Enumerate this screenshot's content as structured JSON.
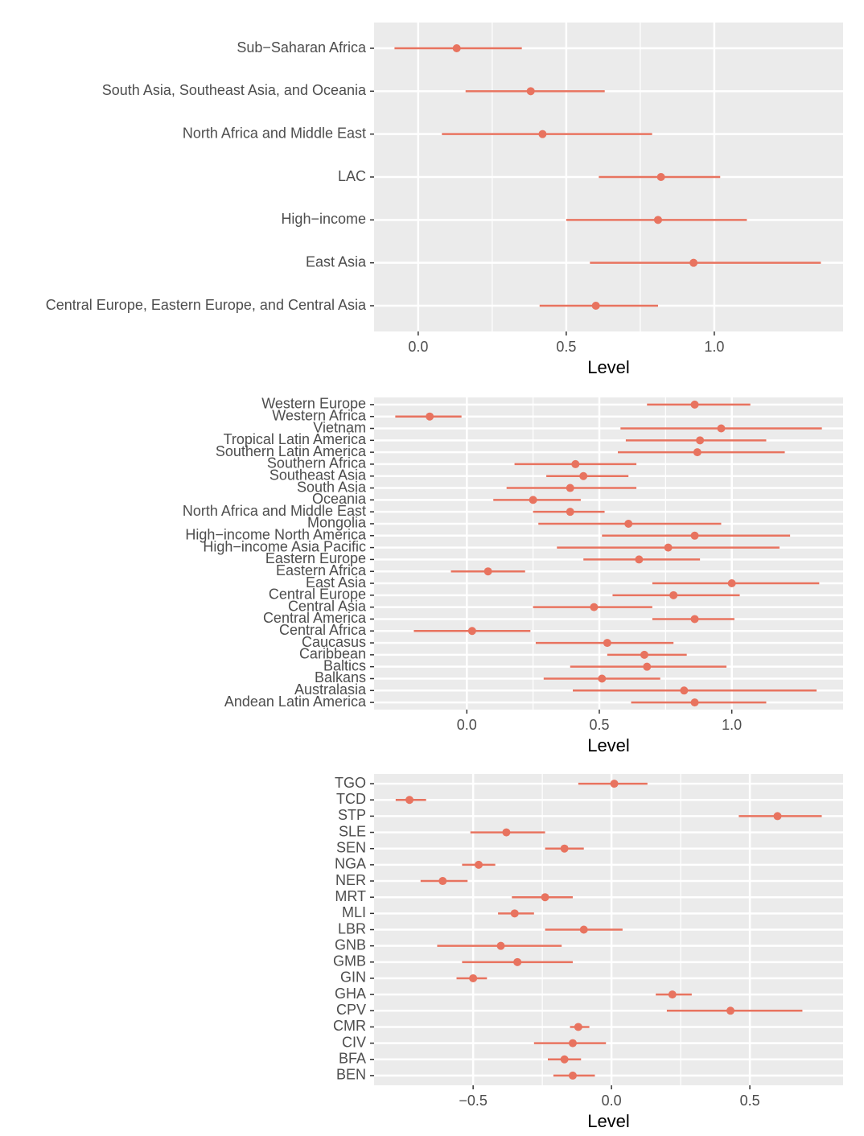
{
  "chart_data": [
    {
      "type": "pointrange",
      "xlabel": "Level",
      "color": "#e8735f",
      "grid": true,
      "categories": [
        "Sub−Saharan Africa",
        "South Asia, Southeast Asia, and Oceania",
        "North Africa and Middle East",
        "LAC",
        "High−income",
        "East Asia",
        "Central Europe, Eastern Europe, and Central Asia"
      ],
      "values": [
        0.13,
        0.38,
        0.42,
        0.82,
        0.81,
        0.93,
        0.6
      ],
      "lower": [
        -0.08,
        0.16,
        0.08,
        0.61,
        0.5,
        0.58,
        0.41
      ],
      "upper": [
        0.35,
        0.63,
        0.79,
        1.02,
        1.11,
        1.36,
        0.81
      ],
      "xlim": [
        -0.149,
        1.435
      ],
      "xticks": [
        {
          "value": 0,
          "label": "0.0"
        },
        0.5,
        {
          "value": 1,
          "label": "1.0"
        }
      ]
    },
    {
      "type": "pointrange",
      "xlabel": "Level",
      "color": "#e8735f",
      "grid": true,
      "categories": [
        "Western Europe",
        "Western Africa",
        "Vietnam",
        "Tropical Latin America",
        "Southern Latin America",
        "Southern Africa",
        "Southeast Asia",
        "South Asia",
        "Oceania",
        "North Africa and Middle East",
        "Mongolia",
        "High−income North America",
        "High−income Asia Pacific",
        "Eastern Europe",
        "Eastern Africa",
        "East Asia",
        "Central Europe",
        "Central Asia",
        "Central America",
        "Central Africa",
        "Caucasus",
        "Caribbean",
        "Baltics",
        "Balkans",
        "Australasia",
        "Andean Latin America"
      ],
      "values": [
        0.86,
        -0.14,
        0.96,
        0.88,
        0.87,
        0.41,
        0.44,
        0.39,
        0.25,
        0.39,
        0.61,
        0.86,
        0.76,
        0.65,
        0.08,
        1.0,
        0.78,
        0.48,
        0.86,
        0.02,
        0.53,
        0.67,
        0.68,
        0.51,
        0.82,
        0.86
      ],
      "lower": [
        0.68,
        -0.27,
        0.58,
        0.6,
        0.57,
        0.18,
        0.3,
        0.15,
        0.1,
        0.25,
        0.27,
        0.51,
        0.34,
        0.44,
        -0.06,
        0.7,
        0.55,
        0.25,
        0.7,
        -0.2,
        0.26,
        0.53,
        0.39,
        0.29,
        0.4,
        0.62
      ],
      "upper": [
        1.07,
        -0.02,
        1.34,
        1.13,
        1.2,
        0.64,
        0.61,
        0.64,
        0.43,
        0.52,
        0.96,
        1.22,
        1.18,
        0.88,
        0.22,
        1.33,
        1.03,
        0.7,
        1.01,
        0.24,
        0.78,
        0.83,
        0.98,
        0.73,
        1.32,
        1.13
      ],
      "xlim": [
        -0.35,
        1.42
      ],
      "xticks": [
        {
          "value": 0,
          "label": "0.0"
        },
        0.5,
        {
          "value": 1,
          "label": "1.0"
        }
      ]
    },
    {
      "type": "pointrange",
      "xlabel": "Level",
      "color": "#e8735f",
      "grid": true,
      "categories": [
        "TGO",
        "TCD",
        "STP",
        "SLE",
        "SEN",
        "NGA",
        "NER",
        "MRT",
        "MLI",
        "LBR",
        "GNB",
        "GMB",
        "GIN",
        "GHA",
        "CPV",
        "CMR",
        "CIV",
        "BFA",
        "BEN"
      ],
      "values": [
        0.01,
        -0.73,
        0.6,
        -0.38,
        -0.17,
        -0.48,
        -0.61,
        -0.24,
        -0.35,
        -0.1,
        -0.4,
        -0.34,
        -0.5,
        0.22,
        0.43,
        -0.12,
        -0.14,
        -0.17,
        -0.14
      ],
      "lower": [
        -0.12,
        -0.78,
        0.46,
        -0.51,
        -0.24,
        -0.54,
        -0.69,
        -0.36,
        -0.41,
        -0.24,
        -0.63,
        -0.54,
        -0.56,
        0.16,
        0.2,
        -0.15,
        -0.28,
        -0.23,
        -0.21
      ],
      "upper": [
        0.13,
        -0.67,
        0.76,
        -0.24,
        -0.1,
        -0.42,
        -0.52,
        -0.14,
        -0.28,
        0.04,
        -0.18,
        -0.14,
        -0.45,
        0.29,
        0.69,
        -0.08,
        -0.02,
        -0.11,
        -0.06
      ],
      "xlim": [
        -0.858,
        0.837
      ],
      "xticks": [
        {
          "value": -0.5,
          "label": "−0.5"
        },
        {
          "value": 0,
          "label": "0.0"
        },
        0.5
      ]
    }
  ]
}
